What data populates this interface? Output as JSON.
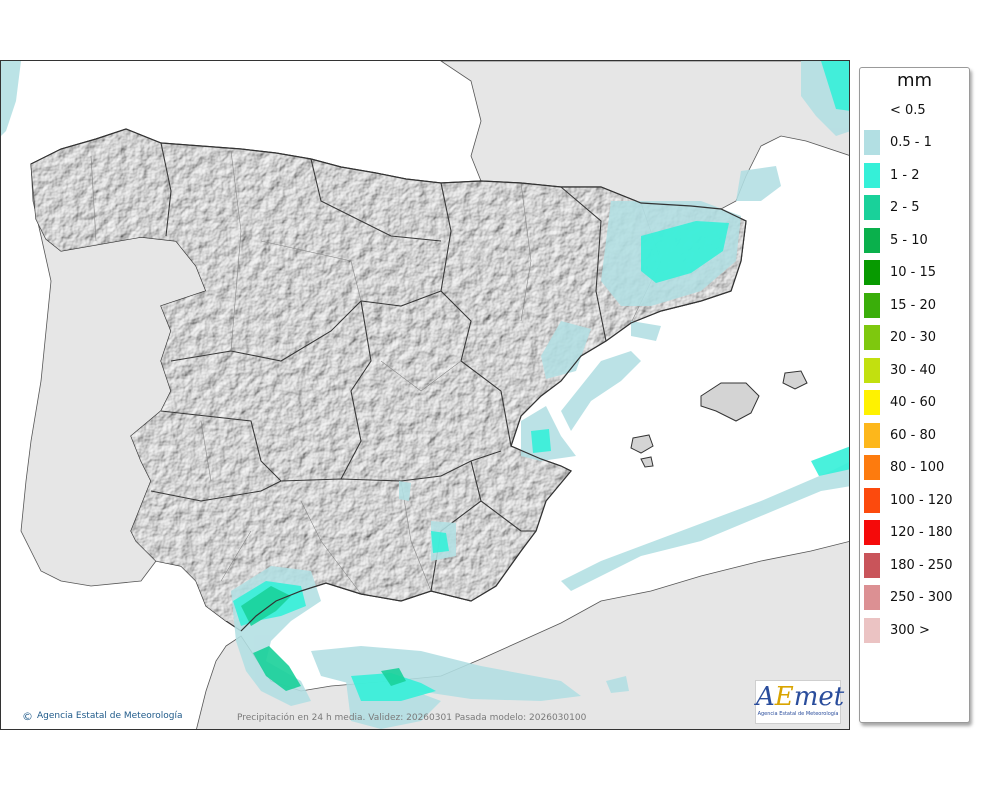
{
  "legend": {
    "title": "mm",
    "items": [
      {
        "label": "< 0.5",
        "color": "#ffffff"
      },
      {
        "label": "0.5 - 1",
        "color": "#b2dfe3"
      },
      {
        "label": "1 - 2",
        "color": "#35f0d8"
      },
      {
        "label": "2 - 5",
        "color": "#19d19a"
      },
      {
        "label": "5 - 10",
        "color": "#0ab04c"
      },
      {
        "label": "10 - 15",
        "color": "#079a00"
      },
      {
        "label": "15 - 20",
        "color": "#3aae0a"
      },
      {
        "label": "20 - 30",
        "color": "#7ec80e"
      },
      {
        "label": "30 - 40",
        "color": "#c2e00f"
      },
      {
        "label": "40 - 60",
        "color": "#fff200"
      },
      {
        "label": "60 - 80",
        "color": "#fdb71b"
      },
      {
        "label": "80 - 100",
        "color": "#fd7b0e"
      },
      {
        "label": "100 - 120",
        "color": "#fc4a0d"
      },
      {
        "label": "120 - 180",
        "color": "#f50a0a"
      },
      {
        "label": "180 - 250",
        "color": "#c9545a"
      },
      {
        "label": "250 - 300",
        "color": "#dc9093"
      },
      {
        "label": "300 >",
        "color": "#ebc3c3"
      }
    ]
  },
  "footer": {
    "credit": "Agencia Estatal de Meteorología",
    "caption": "Precipitación en 24 h media. Validez: 20260301 Pasada modelo: 2026030100"
  },
  "logo": {
    "text_a": "A",
    "text_e": "E",
    "text_rest": "met",
    "subtitle": "Agencia Estatal de Meteorología"
  },
  "map": {
    "colors": {
      "sea": "#ffffff",
      "foreign_land": "#e6e6e6",
      "spain": "#d7d7d7",
      "borders": "#444444",
      "rain_light": "#b2dfe3",
      "rain_medium": "#35f0d8",
      "rain_heavy": "#19d19a"
    }
  }
}
